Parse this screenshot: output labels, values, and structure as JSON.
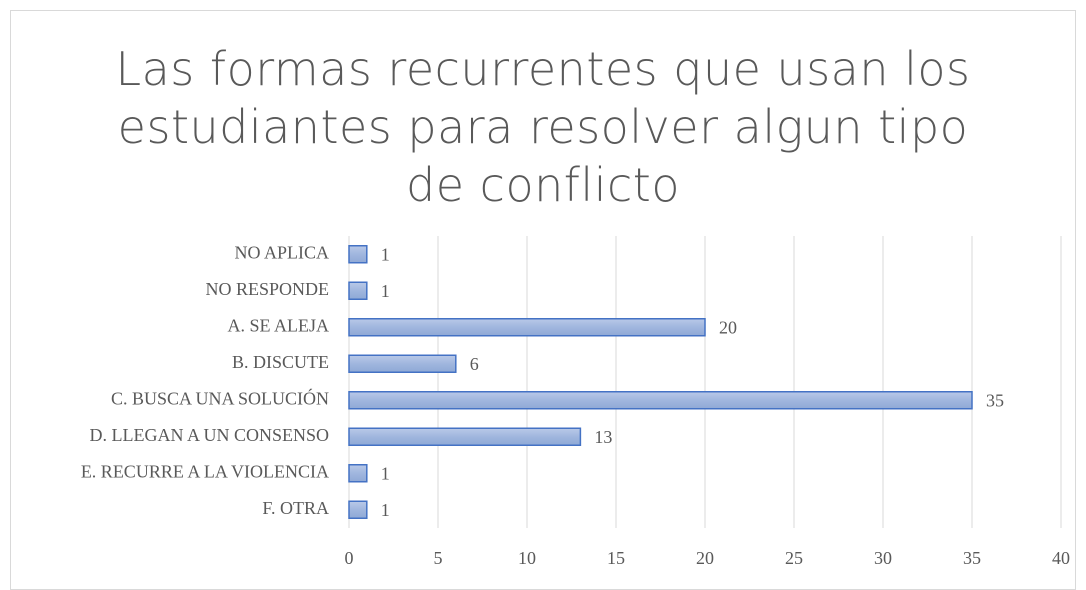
{
  "chart_data": {
    "type": "bar",
    "orientation": "horizontal",
    "title": "Las formas recurrentes que usan los estudiantes para resolver algun tipo de conflicto",
    "categories": [
      "NO APLICA",
      "NO RESPONDE",
      "A. SE ALEJA",
      "B. DISCUTE",
      "C. BUSCA UNA SOLUCIÓN",
      "D. LLEGAN A UN CONSENSO",
      "E. RECURRE A LA VIOLENCIA",
      "F. OTRA"
    ],
    "values": [
      1,
      1,
      20,
      6,
      35,
      13,
      1,
      1
    ],
    "color": "#4472c4",
    "xlim": [
      0,
      40
    ],
    "xticks": [
      0,
      5,
      10,
      15,
      20,
      25,
      30,
      35,
      40
    ],
    "grid": true
  }
}
